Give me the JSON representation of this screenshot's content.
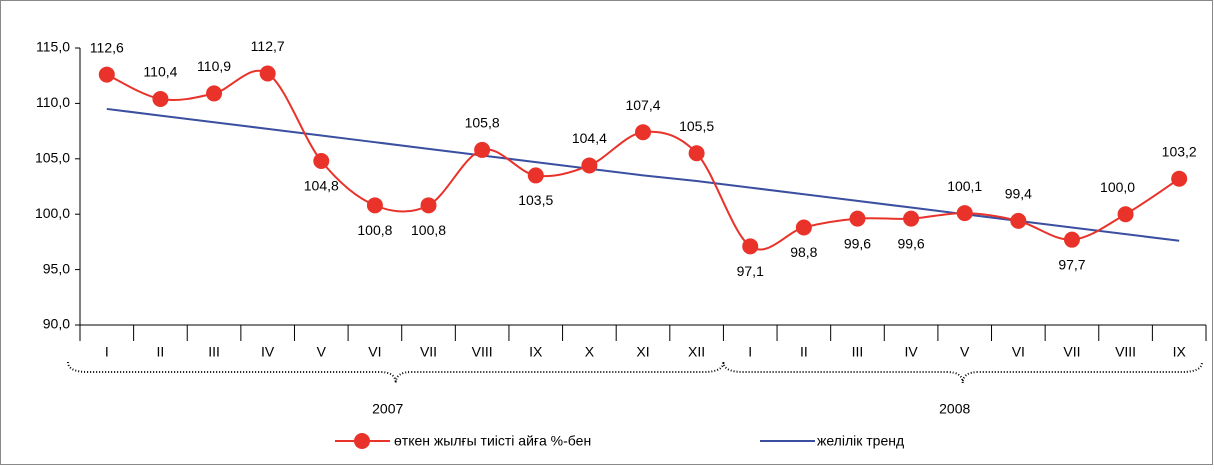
{
  "chart_data": {
    "type": "line",
    "categories": [
      "I",
      "II",
      "III",
      "IV",
      "V",
      "VI",
      "VII",
      "VIII",
      "IX",
      "X",
      "XI",
      "XII",
      "I",
      "II",
      "III",
      "IV",
      "V",
      "VI",
      "VII",
      "VIII",
      "IX"
    ],
    "groups": [
      {
        "label": "2007",
        "from": 0,
        "to": 11
      },
      {
        "label": "2008",
        "from": 12,
        "to": 20
      }
    ],
    "series": [
      {
        "name": "өткен жылғы тиісті айға %-бен",
        "color": "#e8322a",
        "values": [
          112.6,
          110.4,
          110.9,
          112.7,
          104.8,
          100.8,
          100.8,
          105.8,
          103.5,
          104.4,
          107.4,
          105.5,
          97.1,
          98.8,
          99.6,
          99.6,
          100.1,
          99.4,
          97.7,
          100.0,
          103.2
        ],
        "value_labels": [
          "112,6",
          "110,4",
          "110,9",
          "112,7",
          "104,8",
          "100,8",
          "100,8",
          "105,8",
          "103,5",
          "104,4",
          "107,4",
          "105,5",
          "97,1",
          "98,8",
          "99,6",
          "99,6",
          "100,1",
          "99,4",
          "97,7",
          "100,0",
          "103,2"
        ]
      },
      {
        "name": "желілік тренд",
        "color": "#3a4fa0",
        "values": [
          109.5,
          108.9,
          108.3,
          107.7,
          107.1,
          106.5,
          105.9,
          105.3,
          104.7,
          104.1,
          103.5,
          103.0,
          102.4,
          101.8,
          101.2,
          100.6,
          100.0,
          99.4,
          98.8,
          98.2,
          97.6
        ]
      }
    ],
    "ylim": [
      90,
      115
    ],
    "yticks": [
      {
        "value": 90,
        "label": "90,0"
      },
      {
        "value": 95,
        "label": "95,0"
      },
      {
        "value": 100,
        "label": "100,0"
      },
      {
        "value": 105,
        "label": "105,0"
      },
      {
        "value": 110,
        "label": "110,0"
      },
      {
        "value": 115,
        "label": "115,0"
      }
    ],
    "legend": "bottom"
  }
}
